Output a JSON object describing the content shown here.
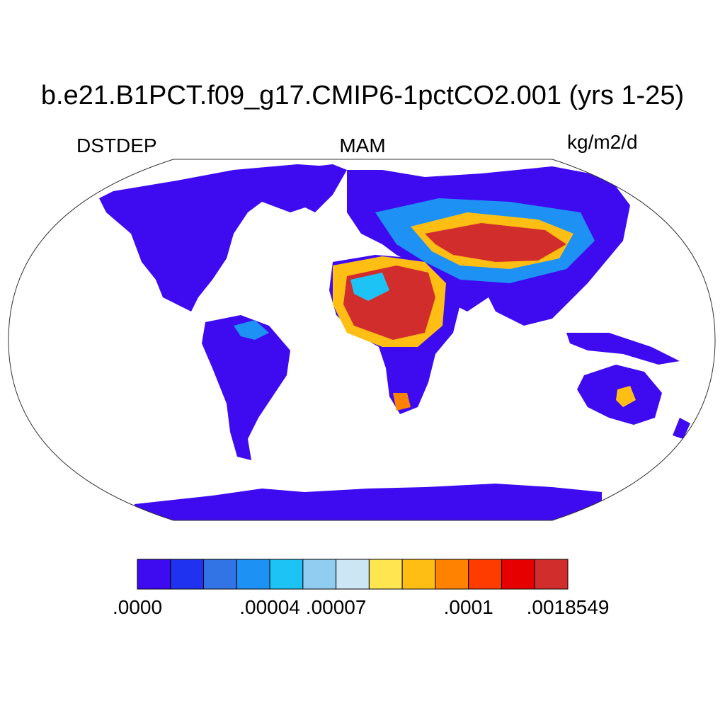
{
  "header": {
    "title": "b.e21.B1PCT.f09_g17.CMIP6-1pctCO2.001 (yrs 1-25)",
    "variable": "DSTDEP",
    "season": "MAM",
    "units": "kg/m2/d"
  },
  "map": {
    "projection": "Robinson",
    "field": "dust deposition flux"
  },
  "colorbar": {
    "colors": [
      "#3e0af0",
      "#1e32f0",
      "#3273e6",
      "#1e91f5",
      "#1ec3f5",
      "#91cdf0",
      "#cde6f5",
      "#ffe650",
      "#ffbe14",
      "#ff8200",
      "#ff3c00",
      "#e60000",
      "#d22d2d"
    ],
    "labels": [
      {
        "text": ".0000",
        "boundary": 0
      },
      {
        "text": ".00004",
        "boundary": 4
      },
      {
        "text": ".00007",
        "boundary": 6
      },
      {
        "text": ".0001",
        "boundary": 10
      },
      {
        "text": ".0018549",
        "boundary": 13
      }
    ]
  }
}
